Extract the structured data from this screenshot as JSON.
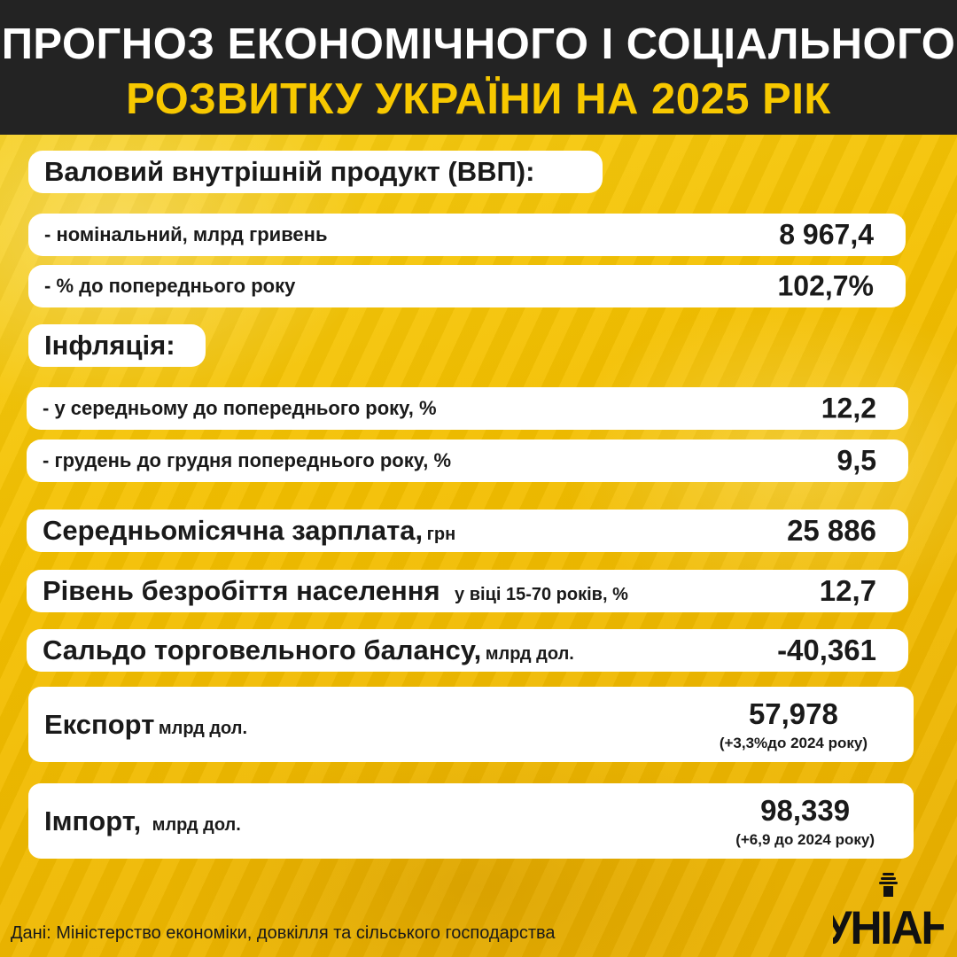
{
  "header": {
    "line1": "ПРОГНОЗ ЕКОНОМІЧНОГО І СОЦІАЛЬНОГО",
    "line2": "РОЗВИТКУ УКРАЇНИ НА 2025 РІК"
  },
  "gdp": {
    "heading": "Валовий внутрішній продукт (ВВП):",
    "nominal_label": "- номінальний, млрд гривень",
    "nominal_value": "8 967,4",
    "prev_label": "- % до попереднього року",
    "prev_value": "102,7%"
  },
  "inflation": {
    "heading": "Інфляція:",
    "avg_label": "- у середньому до попереднього року, %",
    "avg_value": "12,2",
    "dec_label": "- грудень до грудня попереднього року, %",
    "dec_value": "9,5"
  },
  "salary": {
    "label": "Середньомісячна зарплата,",
    "unit": "грн",
    "value": "25 886"
  },
  "unemployment": {
    "label": "Рівень безробіття населення",
    "unit": "у віці 15-70 років, %",
    "value": "12,7"
  },
  "trade_balance": {
    "label": "Сальдо торговельного балансу,",
    "unit": "млрд дол.",
    "value": "-40,361"
  },
  "export": {
    "label": "Експорт",
    "unit": "млрд дол.",
    "value": "57,978",
    "note": "(+3,3%до 2024 року)"
  },
  "import": {
    "label": "Імпорт,",
    "unit": "млрд дол.",
    "value": "98,339",
    "note": "(+6,9 до 2024 року)"
  },
  "source": "Дані: Міністерство економіки, довкілля та сільського господарства",
  "logo_text": "УНІАН",
  "colors": {
    "header_bg": "#232323",
    "accent_yellow": "#f7c800",
    "pill_bg": "#ffffff"
  }
}
